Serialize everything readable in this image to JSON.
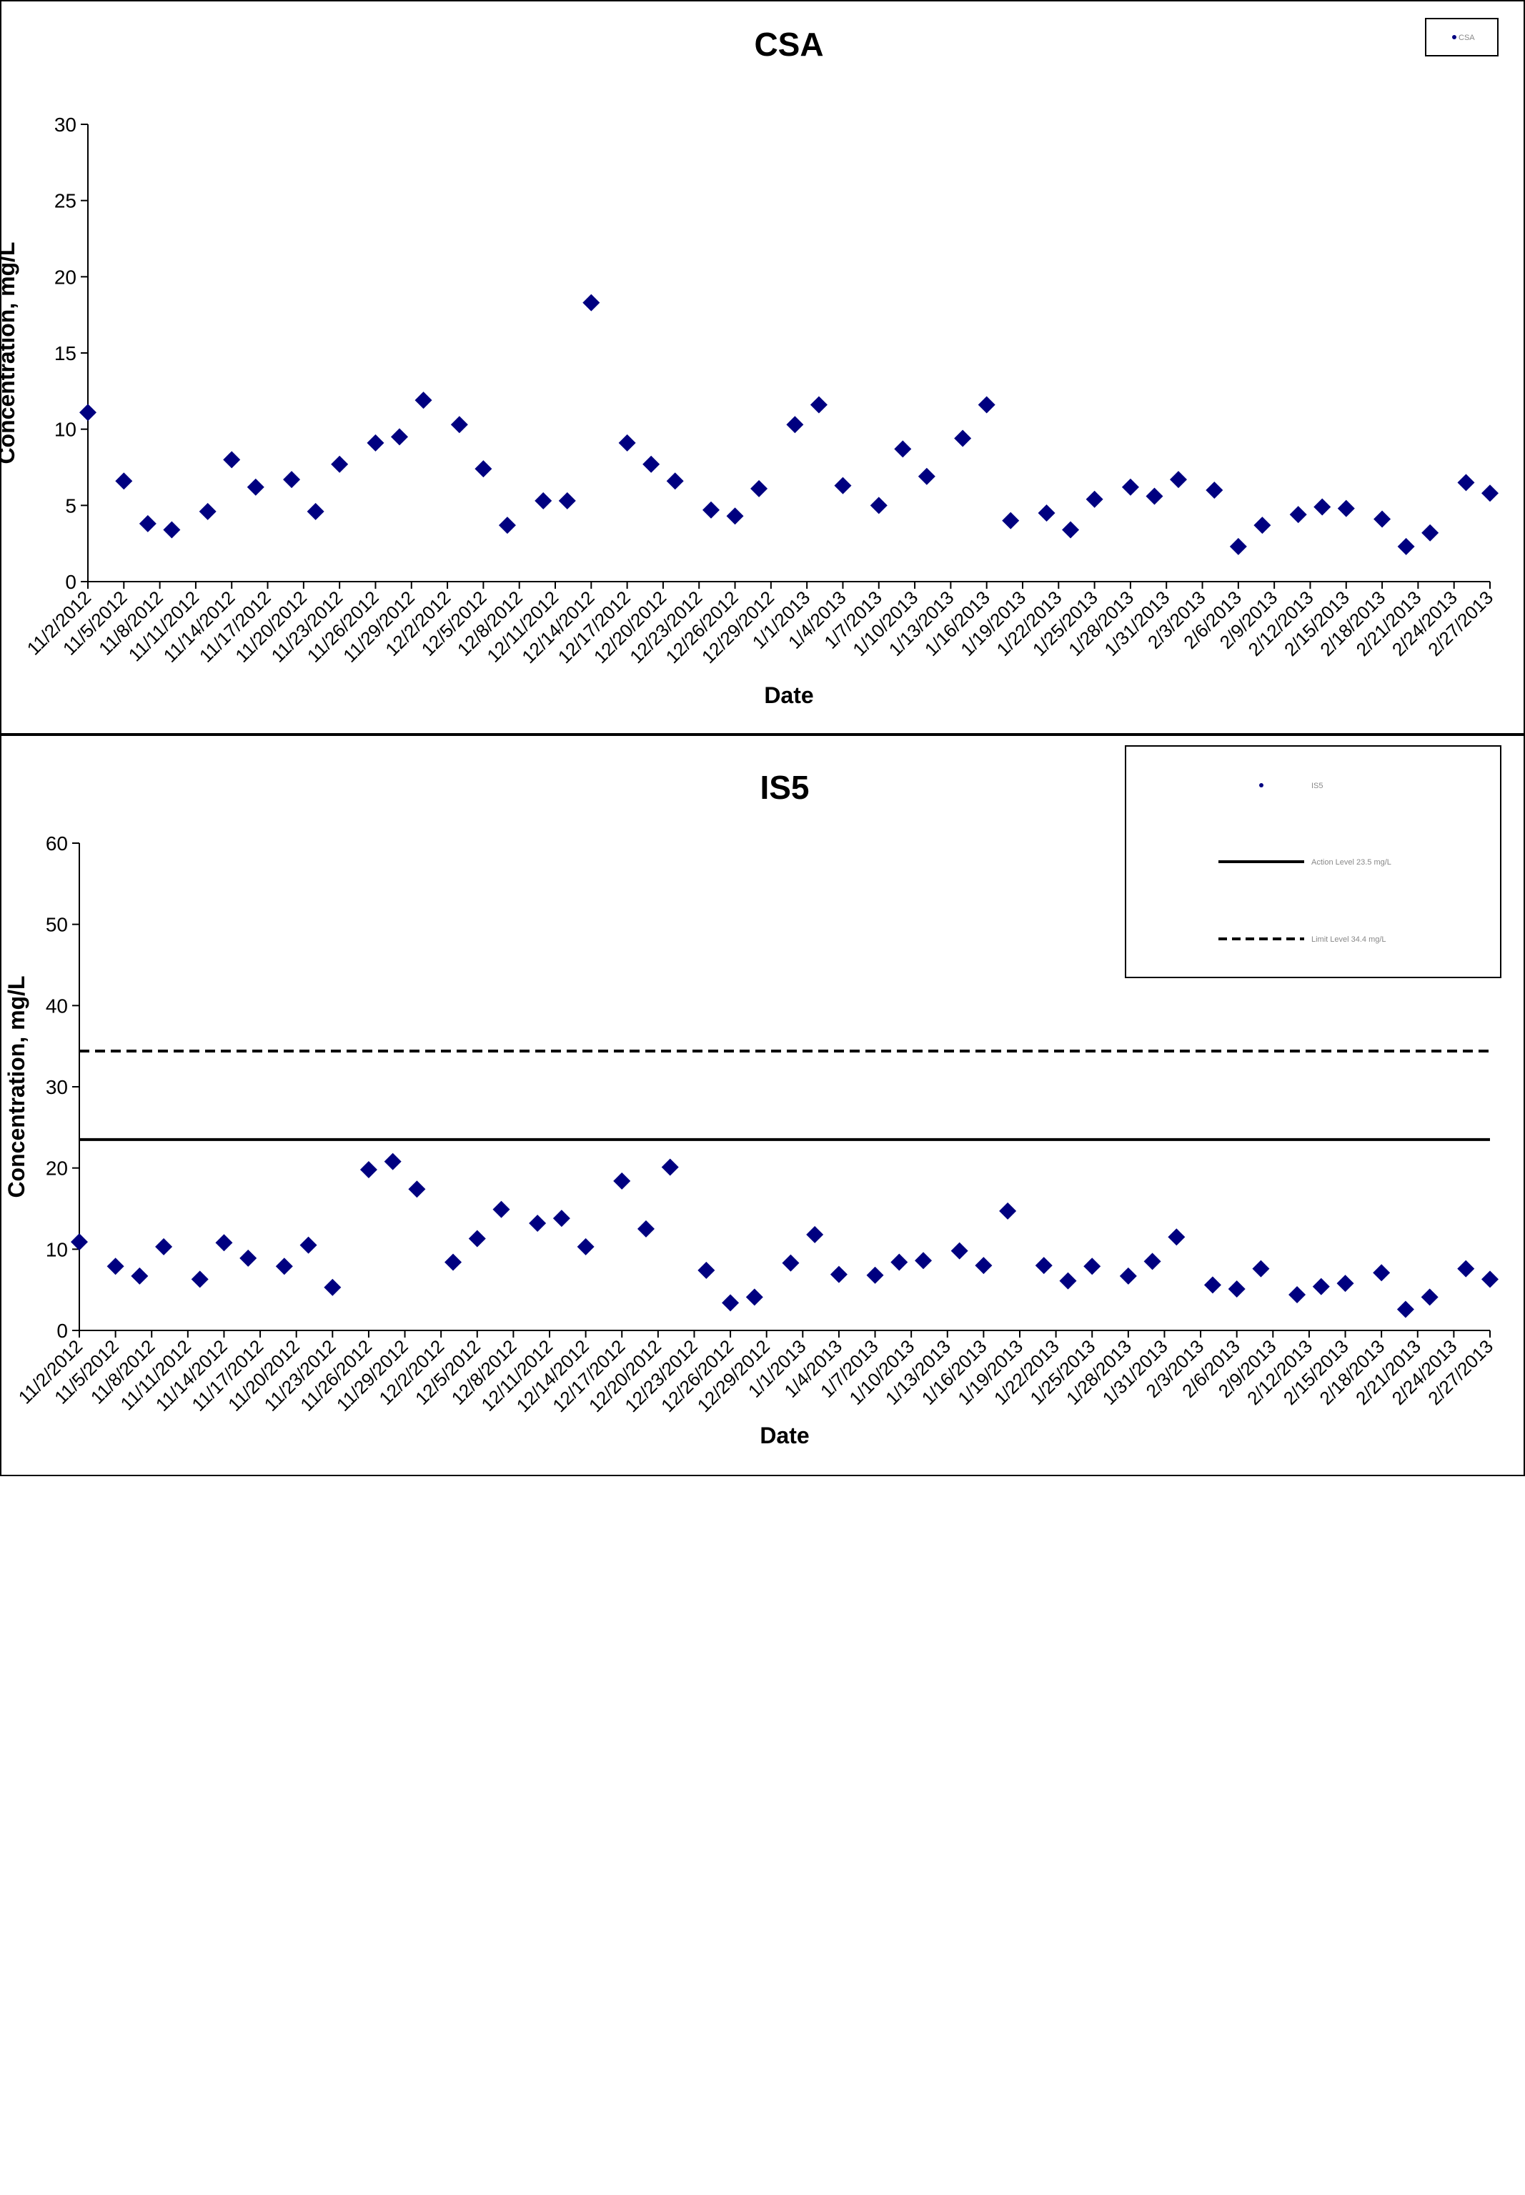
{
  "chart_data": [
    {
      "type": "scatter",
      "title": "CSA",
      "xlabel": "Date",
      "ylabel": "Concentration, mg/L",
      "ylim": [
        0,
        30
      ],
      "yticks": [
        0,
        5,
        10,
        15,
        20,
        25,
        30
      ],
      "xlim": [
        "11/2/2012",
        "2/27/2013"
      ],
      "xtick_labels": [
        "11/2/2012",
        "11/5/2012",
        "11/8/2012",
        "11/11/2012",
        "11/14/2012",
        "11/17/2012",
        "11/20/2012",
        "11/23/2012",
        "11/26/2012",
        "11/29/2012",
        "12/2/2012",
        "12/5/2012",
        "12/8/2012",
        "12/11/2012",
        "12/14/2012",
        "12/17/2012",
        "12/20/2012",
        "12/23/2012",
        "12/26/2012",
        "12/29/2012",
        "1/1/2013",
        "1/4/2013",
        "1/7/2013",
        "1/10/2013",
        "1/13/2013",
        "1/16/2013",
        "1/19/2013",
        "1/22/2013",
        "1/25/2013",
        "1/28/2013",
        "1/31/2013",
        "2/3/2013",
        "2/6/2013",
        "2/9/2013",
        "2/12/2013",
        "2/15/2013",
        "2/18/2013",
        "2/21/2013",
        "2/24/2013",
        "2/27/2013"
      ],
      "legend": {
        "placement": "top-right",
        "entries": [
          "CSA"
        ]
      },
      "marker_color": "#000080",
      "series": [
        {
          "name": "CSA",
          "x": [
            "11/2/2012",
            "11/5/2012",
            "11/7/2012",
            "11/9/2012",
            "11/12/2012",
            "11/14/2012",
            "11/16/2012",
            "11/19/2012",
            "11/21/2012",
            "11/23/2012",
            "11/26/2012",
            "11/28/2012",
            "11/30/2012",
            "12/3/2012",
            "12/5/2012",
            "12/7/2012",
            "12/10/2012",
            "12/12/2012",
            "12/14/2012",
            "12/17/2012",
            "12/19/2012",
            "12/21/2012",
            "12/24/2012",
            "12/26/2012",
            "12/28/2012",
            "12/31/2012",
            "1/2/2013",
            "1/4/2013",
            "1/7/2013",
            "1/9/2013",
            "1/11/2013",
            "1/14/2013",
            "1/16/2013",
            "1/18/2013",
            "1/21/2013",
            "1/23/2013",
            "1/25/2013",
            "1/28/2013",
            "1/30/2013",
            "2/1/2013",
            "2/4/2013",
            "2/6/2013",
            "2/8/2013",
            "2/11/2013",
            "2/13/2013",
            "2/15/2013",
            "2/18/2013",
            "2/20/2013",
            "2/22/2013",
            "2/25/2013",
            "2/27/2013"
          ],
          "y": [
            11.1,
            6.6,
            3.8,
            3.4,
            4.6,
            8.0,
            6.2,
            6.7,
            4.6,
            7.7,
            9.1,
            9.5,
            11.9,
            10.3,
            7.4,
            3.7,
            5.3,
            5.3,
            18.3,
            9.1,
            7.7,
            6.6,
            4.7,
            4.3,
            6.1,
            10.3,
            11.6,
            6.3,
            5.0,
            8.7,
            6.9,
            9.4,
            11.6,
            4.0,
            4.5,
            3.4,
            5.4,
            6.2,
            5.6,
            6.7,
            6.0,
            2.3,
            3.7,
            4.4,
            4.9,
            4.8,
            4.1,
            2.3,
            3.2,
            6.5,
            5.8
          ]
        }
      ]
    },
    {
      "type": "scatter",
      "title": "IS5",
      "xlabel": "Date",
      "ylabel": "Concentration, mg/L",
      "ylim": [
        0,
        60
      ],
      "yticks": [
        0,
        10,
        20,
        30,
        40,
        50,
        60
      ],
      "xlim": [
        "11/2/2012",
        "2/27/2013"
      ],
      "xtick_labels": [
        "11/2/2012",
        "11/5/2012",
        "11/8/2012",
        "11/11/2012",
        "11/14/2012",
        "11/17/2012",
        "11/20/2012",
        "11/23/2012",
        "11/26/2012",
        "11/29/2012",
        "12/2/2012",
        "12/5/2012",
        "12/8/2012",
        "12/11/2012",
        "12/14/2012",
        "12/17/2012",
        "12/20/2012",
        "12/23/2012",
        "12/26/2012",
        "12/29/2012",
        "1/1/2013",
        "1/4/2013",
        "1/7/2013",
        "1/10/2013",
        "1/13/2013",
        "1/16/2013",
        "1/19/2013",
        "1/22/2013",
        "1/25/2013",
        "1/28/2013",
        "1/31/2013",
        "2/3/2013",
        "2/6/2013",
        "2/9/2013",
        "2/12/2013",
        "2/15/2013",
        "2/18/2013",
        "2/21/2013",
        "2/24/2013",
        "2/27/2013"
      ],
      "legend": {
        "placement": "top-right",
        "entries": [
          "IS5",
          "Action Level 23.5 mg/L",
          "Limit Level 34.4 mg/L"
        ]
      },
      "marker_color": "#000080",
      "series": [
        {
          "name": "IS5",
          "x": [
            "11/2/2012",
            "11/5/2012",
            "11/7/2012",
            "11/9/2012",
            "11/12/2012",
            "11/14/2012",
            "11/16/2012",
            "11/19/2012",
            "11/21/2012",
            "11/23/2012",
            "11/26/2012",
            "11/28/2012",
            "11/30/2012",
            "12/3/2012",
            "12/5/2012",
            "12/7/2012",
            "12/10/2012",
            "12/12/2012",
            "12/14/2012",
            "12/17/2012",
            "12/19/2012",
            "12/21/2012",
            "12/24/2012",
            "12/26/2012",
            "12/28/2012",
            "12/31/2012",
            "1/2/2013",
            "1/4/2013",
            "1/7/2013",
            "1/9/2013",
            "1/11/2013",
            "1/14/2013",
            "1/16/2013",
            "1/18/2013",
            "1/21/2013",
            "1/23/2013",
            "1/25/2013",
            "1/28/2013",
            "1/30/2013",
            "2/1/2013",
            "2/4/2013",
            "2/6/2013",
            "2/8/2013",
            "2/11/2013",
            "2/13/2013",
            "2/15/2013",
            "2/18/2013",
            "2/20/2013",
            "2/22/2013",
            "2/25/2013",
            "2/27/2013"
          ],
          "y": [
            10.9,
            7.9,
            6.7,
            10.3,
            6.3,
            10.8,
            8.9,
            7.9,
            10.5,
            5.3,
            19.8,
            20.8,
            17.4,
            8.4,
            11.3,
            14.9,
            13.2,
            13.8,
            10.3,
            18.4,
            12.5,
            20.1,
            7.4,
            3.4,
            4.1,
            8.3,
            11.8,
            6.9,
            6.8,
            8.4,
            8.6,
            9.8,
            8.0,
            14.7,
            8.0,
            6.1,
            7.9,
            6.7,
            8.5,
            11.5,
            5.6,
            5.1,
            7.6,
            4.4,
            5.4,
            5.8,
            7.1,
            2.6,
            4.1,
            7.6,
            6.3
          ]
        }
      ],
      "reference_lines": [
        {
          "label": "Action Level 23.5 mg/L",
          "value": 23.5,
          "style": "solid"
        },
        {
          "label": "Limit Level 34.4 mg/L",
          "value": 34.4,
          "style": "dashed"
        }
      ]
    }
  ]
}
